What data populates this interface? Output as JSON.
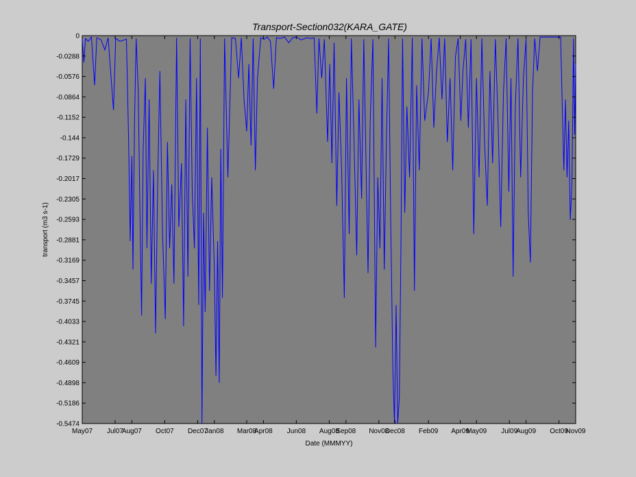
{
  "chart_data": {
    "type": "line",
    "title": "Transport-Section032(KARA_GATE)",
    "xlabel": "Date (MMMYY)",
    "ylabel": "transport (m3 s-1)",
    "ylim": [
      -0.5474,
      0
    ],
    "x_range": [
      "2007-05-01",
      "2009-11-01"
    ],
    "grid": false,
    "legend": "none",
    "y_tick_labels": [
      "0",
      "-0.0288",
      "-0.0576",
      "-0.0864",
      "-0.1152",
      "-0.144",
      "-0.1729",
      "-0.2017",
      "-0.2305",
      "-0.2593",
      "-0.2881",
      "-0.3169",
      "-0.3457",
      "-0.3745",
      "-0.4033",
      "-0.4321",
      "-0.4609",
      "-0.4898",
      "-0.5186",
      "-0.5474"
    ],
    "x_ticks": [
      {
        "label": "May07",
        "date": "2007-05-01"
      },
      {
        "label": "Jul07",
        "date": "2007-07-01"
      },
      {
        "label": "Aug07",
        "date": "2007-08-01"
      },
      {
        "label": "Oct07",
        "date": "2007-10-01"
      },
      {
        "label": "Dec07",
        "date": "2007-12-01"
      },
      {
        "label": "Jan08",
        "date": "2008-01-01"
      },
      {
        "label": "Mar08",
        "date": "2008-03-01"
      },
      {
        "label": "Apr08",
        "date": "2008-04-01"
      },
      {
        "label": "Jun08",
        "date": "2008-06-01"
      },
      {
        "label": "Aug08",
        "date": "2008-08-01"
      },
      {
        "label": "Sep08",
        "date": "2008-09-01"
      },
      {
        "label": "Nov08",
        "date": "2008-11-01"
      },
      {
        "label": "Dec08",
        "date": "2008-12-01"
      },
      {
        "label": "Feb09",
        "date": "2009-02-01"
      },
      {
        "label": "Apr09",
        "date": "2009-04-01"
      },
      {
        "label": "May09",
        "date": "2009-05-01"
      },
      {
        "label": "Jul09",
        "date": "2009-07-01"
      },
      {
        "label": "Aug09",
        "date": "2009-08-01"
      },
      {
        "label": "Oct09",
        "date": "2009-10-01"
      },
      {
        "label": "Nov09",
        "date": "2009-11-01"
      }
    ],
    "series": [
      {
        "color": "#0000ff",
        "points": [
          {
            "date": "2007-05-01",
            "value": -0.005
          },
          {
            "date": "2007-05-04",
            "value": -0.038
          },
          {
            "date": "2007-05-07",
            "value": -0.004
          },
          {
            "date": "2007-05-12",
            "value": -0.008
          },
          {
            "date": "2007-05-18",
            "value": -0.002
          },
          {
            "date": "2007-05-24",
            "value": -0.07
          },
          {
            "date": "2007-05-28",
            "value": -0.003
          },
          {
            "date": "2007-06-05",
            "value": -0.006
          },
          {
            "date": "2007-06-12",
            "value": -0.02
          },
          {
            "date": "2007-06-18",
            "value": -0.003
          },
          {
            "date": "2007-06-28",
            "value": -0.105
          },
          {
            "date": "2007-07-02",
            "value": -0.004
          },
          {
            "date": "2007-07-10",
            "value": -0.008
          },
          {
            "date": "2007-07-22",
            "value": -0.005
          },
          {
            "date": "2007-07-26",
            "value": -0.15
          },
          {
            "date": "2007-07-29",
            "value": -0.29
          },
          {
            "date": "2007-08-01",
            "value": -0.17
          },
          {
            "date": "2007-08-03",
            "value": -0.33
          },
          {
            "date": "2007-08-06",
            "value": -0.12
          },
          {
            "date": "2007-08-09",
            "value": -0.004
          },
          {
            "date": "2007-08-13",
            "value": -0.08
          },
          {
            "date": "2007-08-16",
            "value": -0.25
          },
          {
            "date": "2007-08-19",
            "value": -0.395
          },
          {
            "date": "2007-08-22",
            "value": -0.16
          },
          {
            "date": "2007-08-26",
            "value": -0.06
          },
          {
            "date": "2007-08-29",
            "value": -0.3
          },
          {
            "date": "2007-09-02",
            "value": -0.09
          },
          {
            "date": "2007-09-06",
            "value": -0.35
          },
          {
            "date": "2007-09-10",
            "value": -0.19
          },
          {
            "date": "2007-09-14",
            "value": -0.42
          },
          {
            "date": "2007-09-18",
            "value": -0.2
          },
          {
            "date": "2007-09-22",
            "value": -0.05
          },
          {
            "date": "2007-09-27",
            "value": -0.28
          },
          {
            "date": "2007-10-02",
            "value": -0.4
          },
          {
            "date": "2007-10-06",
            "value": -0.15
          },
          {
            "date": "2007-10-10",
            "value": -0.3
          },
          {
            "date": "2007-10-14",
            "value": -0.21
          },
          {
            "date": "2007-10-18",
            "value": -0.35
          },
          {
            "date": "2007-10-23",
            "value": -0.003
          },
          {
            "date": "2007-10-27",
            "value": -0.27
          },
          {
            "date": "2007-11-01",
            "value": -0.18
          },
          {
            "date": "2007-11-05",
            "value": -0.41
          },
          {
            "date": "2007-11-09",
            "value": -0.09
          },
          {
            "date": "2007-11-13",
            "value": -0.34
          },
          {
            "date": "2007-11-17",
            "value": -0.004
          },
          {
            "date": "2007-11-21",
            "value": -0.22
          },
          {
            "date": "2007-11-25",
            "value": -0.3
          },
          {
            "date": "2007-11-29",
            "value": -0.06
          },
          {
            "date": "2007-12-03",
            "value": -0.38
          },
          {
            "date": "2007-12-06",
            "value": -0.004
          },
          {
            "date": "2007-12-09",
            "value": -0.5474
          },
          {
            "date": "2007-12-12",
            "value": -0.25
          },
          {
            "date": "2007-12-15",
            "value": -0.39
          },
          {
            "date": "2007-12-19",
            "value": -0.13
          },
          {
            "date": "2007-12-23",
            "value": -0.36
          },
          {
            "date": "2007-12-27",
            "value": -0.2
          },
          {
            "date": "2008-01-01",
            "value": -0.33
          },
          {
            "date": "2008-01-04",
            "value": -0.48
          },
          {
            "date": "2008-01-07",
            "value": -0.29
          },
          {
            "date": "2008-01-10",
            "value": -0.49
          },
          {
            "date": "2008-01-13",
            "value": -0.16
          },
          {
            "date": "2008-01-16",
            "value": -0.37
          },
          {
            "date": "2008-01-20",
            "value": -0.004
          },
          {
            "date": "2008-01-26",
            "value": -0.2
          },
          {
            "date": "2008-02-02",
            "value": -0.003
          },
          {
            "date": "2008-02-09",
            "value": -0.004
          },
          {
            "date": "2008-02-15",
            "value": -0.06
          },
          {
            "date": "2008-02-20",
            "value": -0.003
          },
          {
            "date": "2008-02-25",
            "value": -0.09
          },
          {
            "date": "2008-03-01",
            "value": -0.135
          },
          {
            "date": "2008-03-05",
            "value": -0.04
          },
          {
            "date": "2008-03-09",
            "value": -0.155
          },
          {
            "date": "2008-03-13",
            "value": -0.004
          },
          {
            "date": "2008-03-17",
            "value": -0.19
          },
          {
            "date": "2008-03-21",
            "value": -0.06
          },
          {
            "date": "2008-03-27",
            "value": -0.003
          },
          {
            "date": "2008-04-02",
            "value": -0.005
          },
          {
            "date": "2008-04-08",
            "value": -0.002
          },
          {
            "date": "2008-04-14",
            "value": -0.008
          },
          {
            "date": "2008-04-20",
            "value": -0.075
          },
          {
            "date": "2008-04-25",
            "value": -0.003
          },
          {
            "date": "2008-05-02",
            "value": -0.004
          },
          {
            "date": "2008-05-10",
            "value": -0.002
          },
          {
            "date": "2008-05-18",
            "value": -0.01
          },
          {
            "date": "2008-05-25",
            "value": -0.003
          },
          {
            "date": "2008-06-01",
            "value": -0.002
          },
          {
            "date": "2008-06-10",
            "value": -0.006
          },
          {
            "date": "2008-06-20",
            "value": -0.003
          },
          {
            "date": "2008-06-28",
            "value": -0.004
          },
          {
            "date": "2008-07-04",
            "value": -0.003
          },
          {
            "date": "2008-07-09",
            "value": -0.11
          },
          {
            "date": "2008-07-13",
            "value": -0.004
          },
          {
            "date": "2008-07-18",
            "value": -0.06
          },
          {
            "date": "2008-07-23",
            "value": -0.005
          },
          {
            "date": "2008-07-29",
            "value": -0.15
          },
          {
            "date": "2008-08-02",
            "value": -0.04
          },
          {
            "date": "2008-08-06",
            "value": -0.18
          },
          {
            "date": "2008-08-10",
            "value": -0.01
          },
          {
            "date": "2008-08-15",
            "value": -0.24
          },
          {
            "date": "2008-08-19",
            "value": -0.08
          },
          {
            "date": "2008-08-24",
            "value": -0.19
          },
          {
            "date": "2008-08-29",
            "value": -0.37
          },
          {
            "date": "2008-09-02",
            "value": -0.06
          },
          {
            "date": "2008-09-07",
            "value": -0.28
          },
          {
            "date": "2008-09-11",
            "value": -0.004
          },
          {
            "date": "2008-09-16",
            "value": -0.15
          },
          {
            "date": "2008-09-21",
            "value": -0.31
          },
          {
            "date": "2008-09-25",
            "value": -0.09
          },
          {
            "date": "2008-09-30",
            "value": -0.23
          },
          {
            "date": "2008-10-04",
            "value": -0.005
          },
          {
            "date": "2008-10-08",
            "value": -0.17
          },
          {
            "date": "2008-10-12",
            "value": -0.335
          },
          {
            "date": "2008-10-16",
            "value": -0.12
          },
          {
            "date": "2008-10-21",
            "value": -0.005
          },
          {
            "date": "2008-10-26",
            "value": -0.44
          },
          {
            "date": "2008-10-30",
            "value": -0.2
          },
          {
            "date": "2008-11-03",
            "value": -0.3
          },
          {
            "date": "2008-11-07",
            "value": -0.06
          },
          {
            "date": "2008-11-11",
            "value": -0.33
          },
          {
            "date": "2008-11-15",
            "value": -0.15
          },
          {
            "date": "2008-11-19",
            "value": -0.004
          },
          {
            "date": "2008-11-23",
            "value": -0.26
          },
          {
            "date": "2008-11-27",
            "value": -0.47
          },
          {
            "date": "2008-11-30",
            "value": -0.5474
          },
          {
            "date": "2008-12-03",
            "value": -0.38
          },
          {
            "date": "2008-12-06",
            "value": -0.5474
          },
          {
            "date": "2008-12-09",
            "value": -0.51
          },
          {
            "date": "2008-12-12",
            "value": -0.3
          },
          {
            "date": "2008-12-15",
            "value": -0.004
          },
          {
            "date": "2008-12-19",
            "value": -0.25
          },
          {
            "date": "2008-12-23",
            "value": -0.1
          },
          {
            "date": "2008-12-28",
            "value": -0.2
          },
          {
            "date": "2009-01-02",
            "value": -0.003
          },
          {
            "date": "2009-01-06",
            "value": -0.36
          },
          {
            "date": "2009-01-10",
            "value": -0.07
          },
          {
            "date": "2009-01-15",
            "value": -0.19
          },
          {
            "date": "2009-01-20",
            "value": -0.004
          },
          {
            "date": "2009-01-25",
            "value": -0.12
          },
          {
            "date": "2009-02-01",
            "value": -0.08
          },
          {
            "date": "2009-02-06",
            "value": -0.004
          },
          {
            "date": "2009-02-11",
            "value": -0.13
          },
          {
            "date": "2009-02-16",
            "value": -0.05
          },
          {
            "date": "2009-02-21",
            "value": -0.003
          },
          {
            "date": "2009-02-26",
            "value": -0.09
          },
          {
            "date": "2009-03-03",
            "value": -0.004
          },
          {
            "date": "2009-03-08",
            "value": -0.15
          },
          {
            "date": "2009-03-13",
            "value": -0.06
          },
          {
            "date": "2009-03-18",
            "value": -0.19
          },
          {
            "date": "2009-03-23",
            "value": -0.03
          },
          {
            "date": "2009-03-28",
            "value": -0.004
          },
          {
            "date": "2009-04-02",
            "value": -0.12
          },
          {
            "date": "2009-04-06",
            "value": -0.05
          },
          {
            "date": "2009-04-11",
            "value": -0.005
          },
          {
            "date": "2009-04-16",
            "value": -0.13
          },
          {
            "date": "2009-04-21",
            "value": -0.005
          },
          {
            "date": "2009-04-26",
            "value": -0.28
          },
          {
            "date": "2009-05-01",
            "value": -0.06
          },
          {
            "date": "2009-05-06",
            "value": -0.2
          },
          {
            "date": "2009-05-11",
            "value": -0.004
          },
          {
            "date": "2009-05-16",
            "value": -0.15
          },
          {
            "date": "2009-05-21",
            "value": -0.24
          },
          {
            "date": "2009-05-26",
            "value": -0.05
          },
          {
            "date": "2009-05-31",
            "value": -0.18
          },
          {
            "date": "2009-06-05",
            "value": -0.005
          },
          {
            "date": "2009-06-10",
            "value": -0.12
          },
          {
            "date": "2009-06-15",
            "value": -0.27
          },
          {
            "date": "2009-06-20",
            "value": -0.08
          },
          {
            "date": "2009-06-25",
            "value": -0.004
          },
          {
            "date": "2009-06-30",
            "value": -0.22
          },
          {
            "date": "2009-07-04",
            "value": -0.06
          },
          {
            "date": "2009-07-08",
            "value": -0.34
          },
          {
            "date": "2009-07-12",
            "value": -0.1
          },
          {
            "date": "2009-07-17",
            "value": -0.004
          },
          {
            "date": "2009-07-22",
            "value": -0.2
          },
          {
            "date": "2009-07-27",
            "value": -0.06
          },
          {
            "date": "2009-08-01",
            "value": -0.005
          },
          {
            "date": "2009-08-05",
            "value": -0.25
          },
          {
            "date": "2009-08-09",
            "value": -0.32
          },
          {
            "date": "2009-08-13",
            "value": -0.08
          },
          {
            "date": "2009-08-17",
            "value": -0.004
          },
          {
            "date": "2009-08-22",
            "value": -0.05
          },
          {
            "date": "2009-08-27",
            "value": -0.002
          },
          {
            "date": "2009-09-02",
            "value": -0.002
          },
          {
            "date": "2009-09-10",
            "value": -0.002
          },
          {
            "date": "2009-09-18",
            "value": -0.002
          },
          {
            "date": "2009-09-26",
            "value": -0.002
          },
          {
            "date": "2009-10-04",
            "value": -0.002
          },
          {
            "date": "2009-10-10",
            "value": -0.19
          },
          {
            "date": "2009-10-13",
            "value": -0.09
          },
          {
            "date": "2009-10-16",
            "value": -0.2
          },
          {
            "date": "2009-10-19",
            "value": -0.12
          },
          {
            "date": "2009-10-22",
            "value": -0.26
          },
          {
            "date": "2009-10-25",
            "value": -0.21
          },
          {
            "date": "2009-10-28",
            "value": -0.004
          },
          {
            "date": "2009-10-30",
            "value": -0.14
          },
          {
            "date": "2009-11-01",
            "value": -0.04
          }
        ]
      }
    ]
  },
  "colors": {
    "background": "#cccccc",
    "plot_area": "#808080",
    "line": "#0000ff",
    "axis": "#000000"
  }
}
